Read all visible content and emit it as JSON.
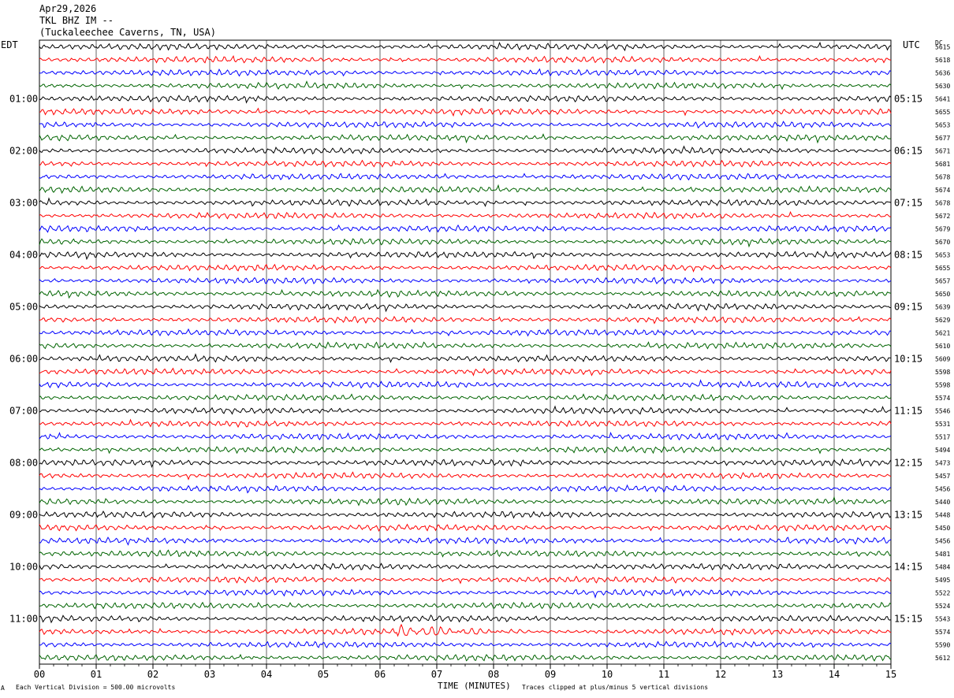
{
  "header": {
    "date": "Apr29,2026",
    "station": "TKL BHZ IM --",
    "location": "(Tuckaleechee Caverns, TN, USA)"
  },
  "corner_left": "EDT",
  "corner_right": "UTC",
  "dc_label": "DC",
  "corner_mark": "A",
  "footer": {
    "scale_note": "Each Vertical Division =  500.00 microvolts",
    "clip_note": "Traces clipped at plus/minus 5 vertical divisions"
  },
  "chart_data": {
    "type": "line",
    "xlabel": "TIME (MINUTES)",
    "xlim": [
      0,
      15
    ],
    "x_ticks": [
      "00",
      "01",
      "02",
      "03",
      "04",
      "05",
      "06",
      "07",
      "08",
      "09",
      "10",
      "11",
      "12",
      "13",
      "14",
      "15"
    ],
    "rows_per_hour": 4,
    "minutes_per_row": 15,
    "trace_colors": [
      "#000000",
      "#ff0000",
      "#0000ff",
      "#006400"
    ],
    "left_hour_labels": [
      "01:00",
      "02:00",
      "03:00",
      "04:00",
      "05:00",
      "06:00",
      "07:00",
      "08:00",
      "09:00",
      "10:00",
      "11:00"
    ],
    "right_hour_labels": [
      "05:15",
      "06:15",
      "07:15",
      "08:15",
      "09:15",
      "10:15",
      "11:15",
      "12:15",
      "13:15",
      "14:15",
      "15:15"
    ],
    "dc_offsets": [
      5615,
      5618,
      5636,
      5630,
      5641,
      5655,
      5653,
      5677,
      5671,
      5681,
      5678,
      5674,
      5678,
      5672,
      5679,
      5670,
      5653,
      5655,
      5657,
      5650,
      5639,
      5629,
      5621,
      5610,
      5609,
      5598,
      5598,
      5574,
      5546,
      5531,
      5517,
      5494,
      5473,
      5457,
      5456,
      5440,
      5448,
      5450,
      5456,
      5481,
      5484,
      5495,
      5522,
      5524,
      5543,
      5574,
      5590,
      5612
    ],
    "events": [
      {
        "row": 45,
        "start_minute": 6.3,
        "end_minute": 9.0
      }
    ]
  }
}
